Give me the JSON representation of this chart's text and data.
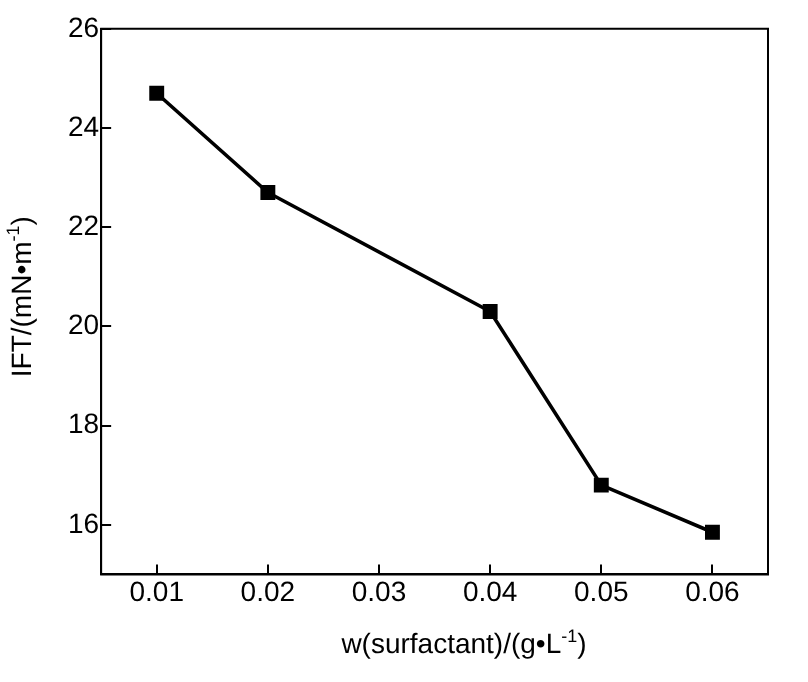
{
  "chart_data": {
    "type": "line",
    "xlabel": "w(surfactant)/(g•L$^{-1}$)",
    "ylabel": "IFT/(mN•m$^{-1}$)",
    "x": [
      0.01,
      0.02,
      0.04,
      0.05,
      0.06
    ],
    "series": [
      {
        "color": "#000000",
        "values": [
          24.7,
          22.7,
          20.3,
          16.8,
          15.85
        ]
      }
    ],
    "xlim": [
      0.005,
      0.065
    ],
    "xticks": [
      0.01,
      0.02,
      0.03,
      0.04,
      0.05,
      0.06
    ],
    "ylim": [
      15,
      26
    ],
    "yticks": [
      16,
      18,
      20,
      22,
      24,
      26
    ],
    "marker": "square",
    "line_style": "solid",
    "grid": false,
    "legend": false
  }
}
